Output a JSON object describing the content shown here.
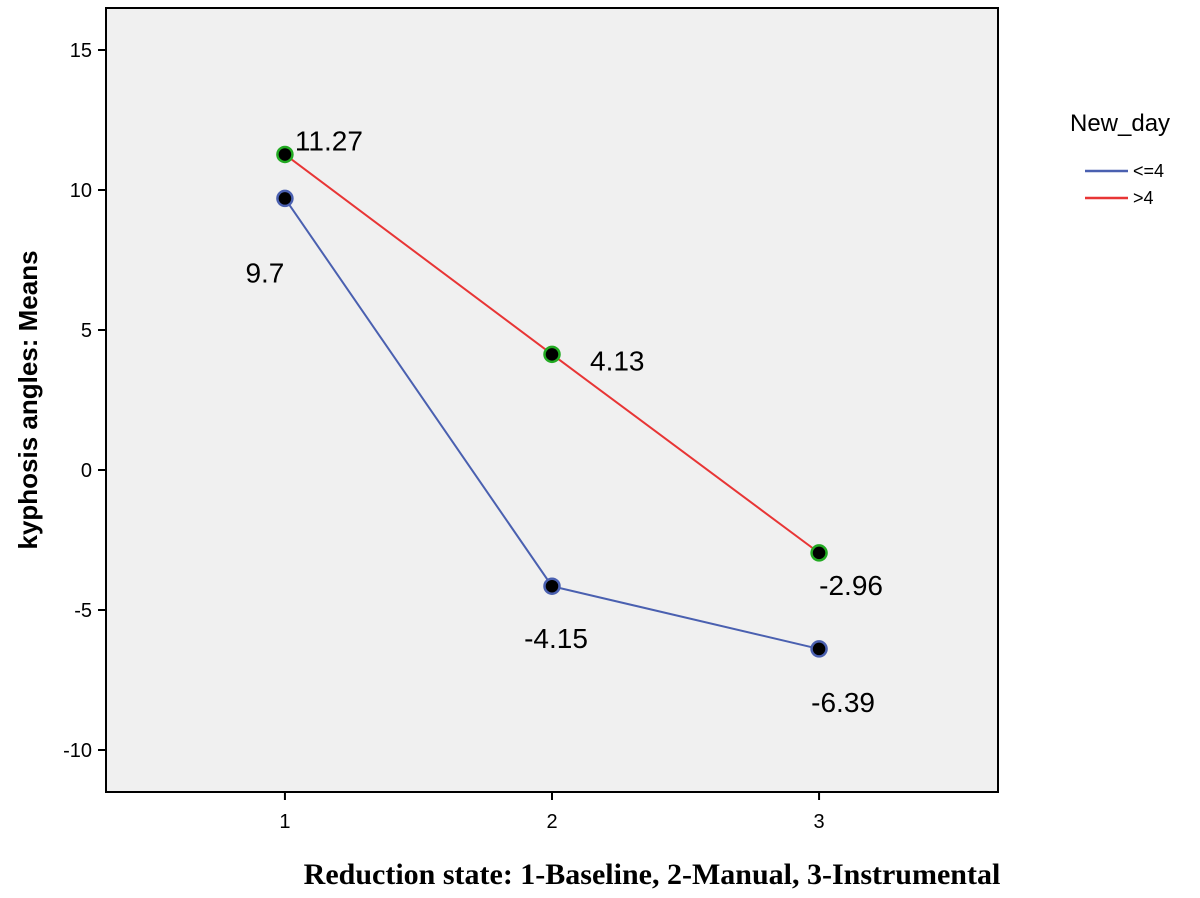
{
  "chart_data": {
    "type": "line",
    "title": "",
    "xlabel": "Reduction state: 1-Baseline, 2-Manual, 3-Instrumental",
    "ylabel": "kyphosis angles: Means",
    "x": [
      1,
      2,
      3
    ],
    "x_tick_labels": [
      "1",
      "2",
      "3"
    ],
    "xlim": [
      0.33,
      3.67
    ],
    "ylim": [
      -11.5,
      16.5
    ],
    "y_ticks": [
      -10,
      -5,
      0,
      5,
      10,
      15
    ],
    "y_tick_labels": [
      "-10",
      "-5",
      "0",
      "5",
      "10",
      "15"
    ],
    "grid": false,
    "legend": {
      "title": "New_day",
      "placement": "right"
    },
    "series": [
      {
        "name": "<=4",
        "color": "#4a60b0",
        "marker_fill": "#000000",
        "marker_edge": "#4a60b0",
        "values": [
          9.7,
          -4.15,
          -6.39
        ],
        "labels": [
          "9.7",
          "-4.15",
          "-6.39"
        ]
      },
      {
        "name": ">4",
        "color": "#e83535",
        "marker_fill": "#000000",
        "marker_edge": "#22aa22",
        "values": [
          11.27,
          4.13,
          -2.96
        ],
        "labels": [
          "11.27",
          "4.13",
          "-2.96"
        ]
      }
    ],
    "colors": {
      "plot_background": "#f0f0f0",
      "frame": "#000000"
    }
  }
}
